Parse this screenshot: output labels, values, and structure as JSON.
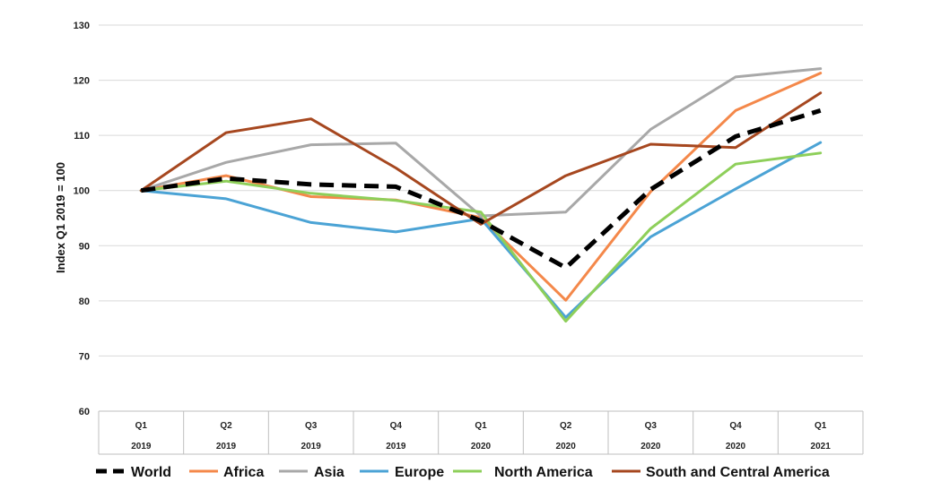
{
  "chart_data": {
    "type": "line",
    "categories": [
      [
        "Q1",
        "2019"
      ],
      [
        "Q2",
        "2019"
      ],
      [
        "Q3",
        "2019"
      ],
      [
        "Q4",
        "2019"
      ],
      [
        "Q1",
        "2020"
      ],
      [
        "Q2",
        "2020"
      ],
      [
        "Q3",
        "2020"
      ],
      [
        "Q4",
        "2020"
      ],
      [
        "Q1",
        "2021"
      ]
    ],
    "ylabel": "Index Q1 2019 = 100",
    "ylim": [
      60,
      130
    ],
    "yticks": [
      60,
      70,
      80,
      90,
      100,
      110,
      120,
      130
    ],
    "grid": true,
    "legend_position": "bottom",
    "series": [
      {
        "name": "World",
        "color": "#000000",
        "dashed": true,
        "values": [
          100,
          102.2,
          101.1,
          100.7,
          94.5,
          86,
          100.2,
          109.8,
          114.5
        ]
      },
      {
        "name": "Africa",
        "color": "#F4884A",
        "dashed": false,
        "values": [
          100,
          102.7,
          98.9,
          98.3,
          95.1,
          80.1,
          99.8,
          114.5,
          121.3
        ]
      },
      {
        "name": "Asia",
        "color": "#A8A8A8",
        "dashed": false,
        "values": [
          100,
          105.1,
          108.3,
          108.6,
          95.4,
          96.1,
          111.1,
          120.6,
          122.1
        ]
      },
      {
        "name": "Europe",
        "color": "#4BA3D5",
        "dashed": false,
        "values": [
          100,
          98.5,
          94.2,
          92.5,
          94.9,
          77,
          91.6,
          100.3,
          108.7
        ]
      },
      {
        "name": "North America",
        "color": "#8ECF5A",
        "dashed": false,
        "values": [
          100,
          101.7,
          99.5,
          98.2,
          96.1,
          76.3,
          93.1,
          104.8,
          106.8
        ]
      },
      {
        "name": "South and Central America",
        "color": "#A6471F",
        "dashed": false,
        "values": [
          100,
          110.5,
          113,
          104.1,
          93.9,
          102.7,
          108.4,
          107.8,
          117.7
        ]
      }
    ]
  }
}
